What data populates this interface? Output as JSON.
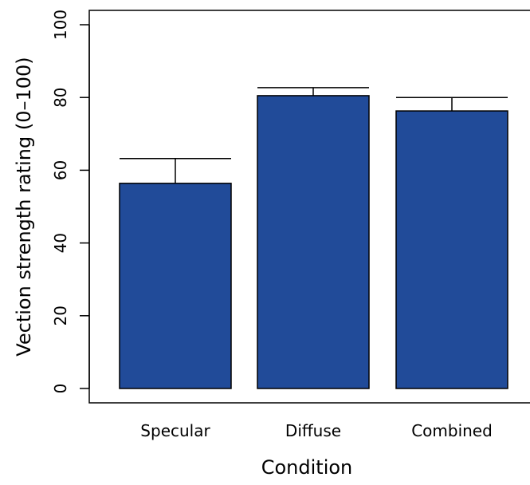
{
  "chart_data": {
    "type": "bar",
    "x_label": "Condition",
    "y_label": "Vection strength rating (0–100)",
    "categories": [
      "Specular",
      "Diffuse",
      "Combined"
    ],
    "values": [
      56.4,
      80.5,
      76.3
    ],
    "errors": [
      6.8,
      2.2,
      3.7
    ],
    "color": "#214b99",
    "ylim": [
      0,
      100
    ],
    "yticks": [
      0,
      20,
      40,
      60,
      80,
      100
    ]
  }
}
